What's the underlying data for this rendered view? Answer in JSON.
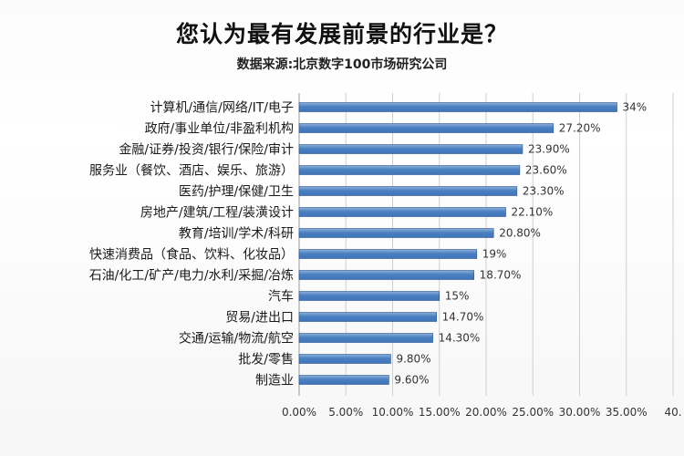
{
  "title": "您认为最有发展前景的行业是？",
  "subtitle": "数据来源:北京数字100市场研究公司",
  "chart_data": {
    "type": "bar",
    "orientation": "horizontal",
    "title": "您认为最有发展前景的行业是？",
    "subtitle": "数据来源:北京数字100市场研究公司",
    "categories": [
      "计算机/通信/网络/IT/电子",
      "政府/事业单位/非盈利机构",
      "金融/证券/投资/银行/保险/审计",
      "服务业（餐饮、酒店、娱乐、旅游）",
      "医药/护理/保健/卫生",
      "房地产/建筑/工程/装潢设计",
      "教育/培训/学术/科研",
      "快速消费品（食品、饮料、化妆品）",
      "石油/化工/矿产/电力/水利/采掘/冶炼",
      "汽车",
      "贸易/进出口",
      "交通/运输/物流/航空",
      "批发/零售",
      "制造业"
    ],
    "values": [
      34,
      27.2,
      23.9,
      23.6,
      23.3,
      22.1,
      20.8,
      19,
      18.7,
      15,
      14.7,
      14.3,
      9.8,
      9.6
    ],
    "value_labels": [
      "34%",
      "27.20%",
      "23.90%",
      "23.60%",
      "23.30%",
      "22.10%",
      "20.80%",
      "19%",
      "18.70%",
      "15%",
      "14.70%",
      "14.30%",
      "9.80%",
      "9.60%"
    ],
    "xlim": [
      0,
      40
    ],
    "x_ticks": [
      0,
      5,
      10,
      15,
      20,
      25,
      30,
      35,
      40
    ],
    "x_tick_labels": [
      "0.00%",
      "5.00%",
      "10.00%",
      "15.00%",
      "20.00%",
      "25.00%",
      "30.00%",
      "35.00%",
      "40."
    ],
    "grid": true,
    "legend": "none",
    "bar_color": "#3f74b8",
    "bar_color_light": "#8fb1da"
  }
}
